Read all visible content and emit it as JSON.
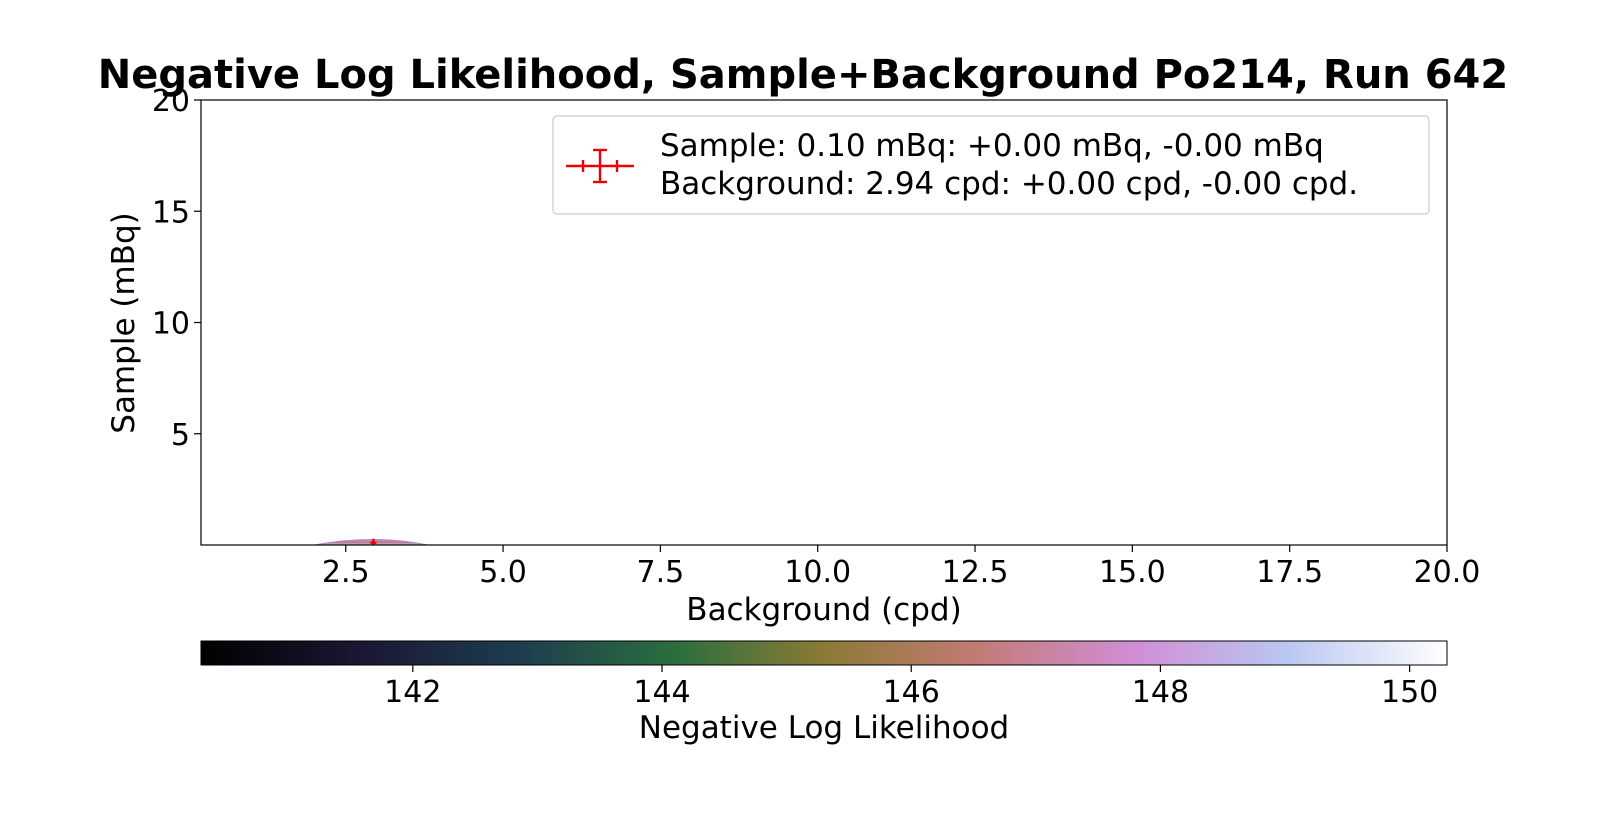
{
  "chart_data": {
    "type": "heatmap",
    "title": "Negative Log Likelihood, Sample+Background Po214, Run 642",
    "xlabel": "Background (cpd)",
    "ylabel": "Sample (mBq)",
    "xlim": [
      0.2,
      20.0
    ],
    "ylim": [
      0.0,
      20.0
    ],
    "x_ticks": [
      {
        "value": 2.5,
        "label": "2.5"
      },
      {
        "value": 5.0,
        "label": "5.0"
      },
      {
        "value": 7.5,
        "label": "7.5"
      },
      {
        "value": 10.0,
        "label": "10.0"
      },
      {
        "value": 12.5,
        "label": "12.5"
      },
      {
        "value": 15.0,
        "label": "15.0"
      },
      {
        "value": 17.5,
        "label": "17.5"
      },
      {
        "value": 20.0,
        "label": "20.0"
      }
    ],
    "y_ticks": [
      {
        "value": 5,
        "label": "5"
      },
      {
        "value": 10,
        "label": "10"
      },
      {
        "value": 15,
        "label": "15"
      },
      {
        "value": 20,
        "label": "20"
      }
    ],
    "best_fit": {
      "x": 2.94,
      "y": 0.1,
      "xerr_plus": 0.0,
      "xerr_minus": 0.0,
      "yerr_plus": 0.0,
      "yerr_minus": 0.0,
      "color": "#e8000b"
    },
    "contour_blob": {
      "x_range": [
        2.0,
        3.8
      ],
      "peak_y": 0.4
    },
    "legend": {
      "position": "upper-right",
      "lines": [
        "Sample: 0.10 mBq: +0.00 mBq, -0.00 mBq",
        "Background: 2.94 cpd: +0.00 cpd, -0.00 cpd."
      ]
    },
    "colorbar": {
      "label": "Negative Log Likelihood",
      "colormap": "cubehelix",
      "range": [
        140.3,
        150.3
      ],
      "ticks": [
        {
          "value": 142,
          "label": "142"
        },
        {
          "value": 144,
          "label": "144"
        },
        {
          "value": 146,
          "label": "146"
        },
        {
          "value": 148,
          "label": "148"
        },
        {
          "value": 150,
          "label": "150"
        }
      ],
      "stops": [
        {
          "pos": 0.0,
          "color": "#000000"
        },
        {
          "pos": 0.12,
          "color": "#1a1530"
        },
        {
          "pos": 0.25,
          "color": "#1d3b4f"
        },
        {
          "pos": 0.38,
          "color": "#2b6e3e"
        },
        {
          "pos": 0.5,
          "color": "#8c7a35"
        },
        {
          "pos": 0.62,
          "color": "#c27a73"
        },
        {
          "pos": 0.75,
          "color": "#d18ed6"
        },
        {
          "pos": 0.87,
          "color": "#b9c6f1"
        },
        {
          "pos": 1.0,
          "color": "#ffffff"
        }
      ]
    }
  }
}
